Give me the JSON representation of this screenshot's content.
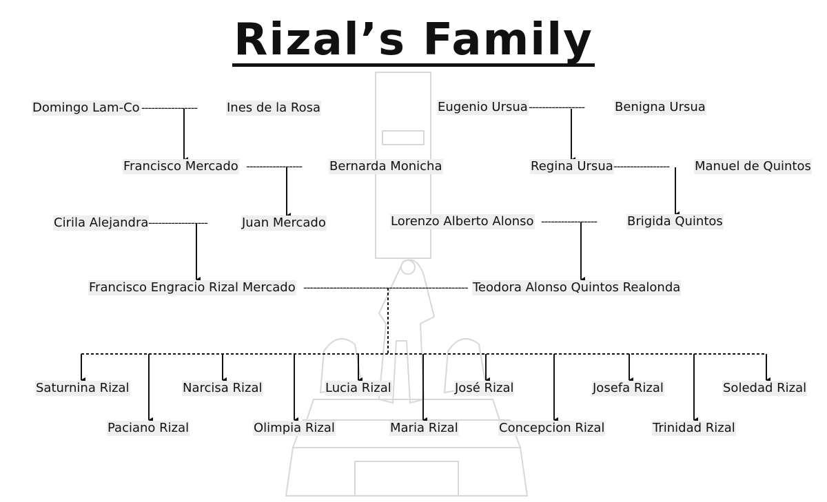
{
  "title": "Rizal’s Family",
  "links": {
    "dashes_short": "-----------------",
    "dashes_medium": "------------------",
    "dashes_long": "--------------------------------------------------"
  },
  "people": {
    "domingo": "Domingo Lam-Co",
    "ines": "Ines de la Rosa",
    "eugenio": "Eugenio Ursua",
    "benigna": "Benigna Ursua",
    "francisco_mercado": "Francisco Mercado",
    "bernarda": "Bernarda Monicha",
    "regina": "Regina Ursua",
    "manuel": "Manuel de Quintos",
    "cirila": "Cirila Alejandra",
    "juan": "Juan Mercado",
    "lorenzo": "Lorenzo Alberto Alonso",
    "brigida": "Brigida Quintos",
    "francisco_engracio": "Francisco Engracio Rizal Mercado",
    "teodora": "Teodora Alonso Quintos Realonda"
  },
  "children": {
    "saturnina": "Saturnina Rizal",
    "paciano": "Paciano Rizal",
    "narcisa": "Narcisa Rizal",
    "olimpia": "Olimpia Rizal",
    "lucia": "Lucia Rizal",
    "maria": "Maria Rizal",
    "jose": "José Rizal",
    "concepcion": "Concepcion Rizal",
    "josefa": "Josefa Rizal",
    "trinidad": "Trinidad Rizal",
    "soledad": "Soledad Rizal"
  }
}
